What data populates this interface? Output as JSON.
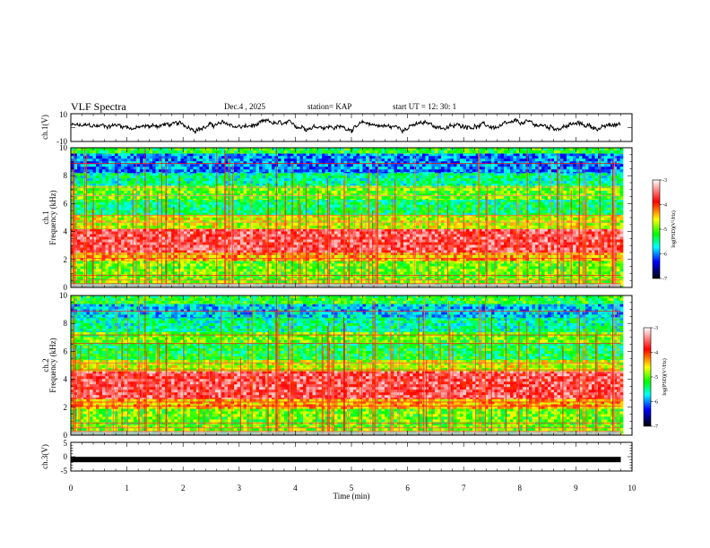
{
  "header": {
    "title": "VLF Spectra",
    "date": "Dec.4 , 2025",
    "station": "station= KAP",
    "start": "start UT =  12: 30: 1"
  },
  "chart_data": [
    {
      "type": "line",
      "panel": "ch1-waveform",
      "ylabel": "ch.1(V)",
      "ylim": [
        -10,
        10
      ],
      "yticks": [
        "10",
        "-10"
      ],
      "xlim": [
        0,
        10
      ],
      "series": [
        {
          "name": "ch.1",
          "description_values": "noisy waveform oscillating between about -4 and +6 V, mean near 0"
        }
      ]
    },
    {
      "type": "heatmap",
      "panel": "ch1-spectrogram",
      "ylabel": "ch.1 Frequency (kHz)",
      "ylim": [
        0,
        10
      ],
      "yticks": [
        "0",
        "2",
        "4",
        "6",
        "8",
        "10"
      ],
      "xlim": [
        0,
        9.8
      ],
      "colorbar": {
        "label": "log(PSD)(V²/Hz)",
        "range": [
          -7,
          -3
        ],
        "ticks": [
          "-3",
          "-4",
          "-5",
          "-6",
          "-7"
        ]
      },
      "bands": [
        {
          "f_lo": 0,
          "f_hi": 0.7,
          "level": -4.9
        },
        {
          "f_lo": 0.7,
          "f_hi": 1.9,
          "level": -5.0
        },
        {
          "f_lo": 1.9,
          "f_hi": 2.5,
          "level": -4.4
        },
        {
          "f_lo": 2.5,
          "f_hi": 4.2,
          "level": -3.6
        },
        {
          "f_lo": 4.2,
          "f_hi": 5.2,
          "level": -4.7
        },
        {
          "f_lo": 5.2,
          "f_hi": 6.3,
          "level": -5.4
        },
        {
          "f_lo": 6.3,
          "f_hi": 7.3,
          "level": -5.0
        },
        {
          "f_lo": 7.3,
          "f_hi": 8.2,
          "level": -5.5
        },
        {
          "f_lo": 8.2,
          "f_hi": 9.6,
          "level": -6.0
        },
        {
          "f_lo": 9.6,
          "f_hi": 10,
          "level": -5.2
        }
      ]
    },
    {
      "type": "heatmap",
      "panel": "ch2-spectrogram",
      "ylabel": "ch.2 Frequency (kHz)",
      "ylim": [
        0,
        10
      ],
      "yticks": [
        "0",
        "2",
        "4",
        "6",
        "8",
        "10"
      ],
      "xlim": [
        0,
        9.8
      ],
      "colorbar": {
        "label": "log(PSD)(V²/Hz)",
        "range": [
          -7,
          -3
        ],
        "ticks": [
          "-3",
          "-4",
          "-5",
          "-6",
          "-7"
        ]
      },
      "bands": [
        {
          "f_lo": 0,
          "f_hi": 0.7,
          "level": -4.9
        },
        {
          "f_lo": 0.7,
          "f_hi": 1.9,
          "level": -5.0
        },
        {
          "f_lo": 1.9,
          "f_hi": 2.6,
          "level": -4.4
        },
        {
          "f_lo": 2.6,
          "f_hi": 4.6,
          "level": -3.6
        },
        {
          "f_lo": 4.6,
          "f_hi": 5.4,
          "level": -4.7
        },
        {
          "f_lo": 5.4,
          "f_hi": 6.6,
          "level": -5.3
        },
        {
          "f_lo": 6.6,
          "f_hi": 7.4,
          "level": -5.0
        },
        {
          "f_lo": 7.4,
          "f_hi": 8.4,
          "level": -5.5
        },
        {
          "f_lo": 8.4,
          "f_hi": 9.4,
          "level": -5.8
        },
        {
          "f_lo": 9.4,
          "f_hi": 10,
          "level": -5.2
        }
      ]
    },
    {
      "type": "line",
      "panel": "ch3-waveform",
      "ylabel": "ch.3(V)",
      "ylim": [
        -5,
        5
      ],
      "yticks": [
        "5",
        "0",
        "-5"
      ],
      "xlim": [
        0,
        10
      ],
      "series": [
        {
          "name": "ch.3",
          "value": -1
        }
      ]
    }
  ],
  "xaxis": {
    "label": "Time (min)",
    "ticks": [
      "0",
      "1",
      "2",
      "3",
      "4",
      "5",
      "6",
      "7",
      "8",
      "9",
      "10"
    ],
    "range": [
      0,
      10
    ]
  }
}
